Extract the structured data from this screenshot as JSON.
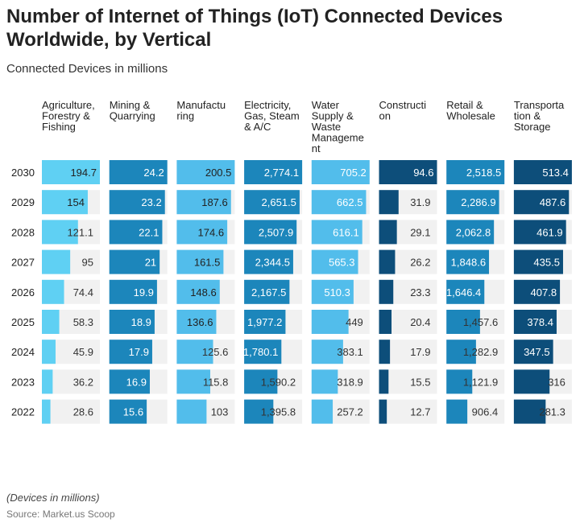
{
  "title": "Number of Internet of Things (IoT) Connected Devices Worldwide, by Vertical",
  "subtitle": "Connected Devices in millions",
  "note": "(Devices in millions)",
  "source": "Source: Market.us Scoop",
  "colors": {
    "track": "#f1f1f1",
    "light_cyan": "#5fd0f3",
    "mid_blue": "#1c86bb",
    "light_blue": "#52bdeb",
    "dark_blue": "#0d4e7a"
  },
  "chart_data": {
    "type": "table",
    "categories": [
      "2030",
      "2029",
      "2028",
      "2027",
      "2026",
      "2025",
      "2024",
      "2023",
      "2022"
    ],
    "series": [
      {
        "name": "Agriculture, Forestry & Fishing",
        "header_lines": [
          "Agriculture,",
          "Forestry &",
          "Fishing"
        ],
        "color": "#5fd0f3",
        "text_color": "#222222",
        "values": [
          194.7,
          154,
          121.1,
          95,
          74.4,
          58.3,
          45.9,
          36.2,
          28.6
        ],
        "labels": [
          "194.7",
          "154",
          "121.1",
          "95",
          "74.4",
          "58.3",
          "45.9",
          "36.2",
          "28.6"
        ]
      },
      {
        "name": "Mining & Quarrying",
        "header_lines": [
          "Mining &",
          "Quarrying"
        ],
        "color": "#1c86bb",
        "text_color": "#ffffff",
        "values": [
          24.2,
          23.2,
          22.1,
          21,
          19.9,
          18.9,
          17.9,
          16.9,
          15.6
        ],
        "labels": [
          "24.2",
          "23.2",
          "22.1",
          "21",
          "19.9",
          "18.9",
          "17.9",
          "16.9",
          "15.6"
        ]
      },
      {
        "name": "Manufacturing",
        "header_lines": [
          "Manufactu",
          "ring"
        ],
        "color": "#52bdeb",
        "text_color": "#222222",
        "values": [
          200.5,
          187.6,
          174.6,
          161.5,
          148.6,
          136.6,
          125.6,
          115.8,
          103
        ],
        "labels": [
          "200.5",
          "187.6",
          "174.6",
          "161.5",
          "148.6",
          "136.6",
          "125.6",
          "115.8",
          "103"
        ]
      },
      {
        "name": "Electricity, Gas, Steam & A/C",
        "header_lines": [
          "Electricity,",
          "Gas, Steam",
          "& A/C"
        ],
        "color": "#1c86bb",
        "text_color": "#ffffff",
        "values": [
          2774.1,
          2651.5,
          2507.9,
          2344.5,
          2167.5,
          1977.2,
          1780.1,
          1590.2,
          1395.8
        ],
        "labels": [
          "2,774.1",
          "2,651.5",
          "2,507.9",
          "2,344.5",
          "2,167.5",
          "1,977.2",
          "1,780.1",
          "1,590.2",
          "1,395.8"
        ]
      },
      {
        "name": "Water Supply & Waste Management",
        "header_lines": [
          "Water",
          "Supply &",
          "Waste",
          "Manageme",
          "nt"
        ],
        "color": "#52bdeb",
        "text_color": "#ffffff",
        "values": [
          705.2,
          662.5,
          616.1,
          565.3,
          510.3,
          449,
          383.1,
          318.9,
          257.2
        ],
        "labels": [
          "705.2",
          "662.5",
          "616.1",
          "565.3",
          "510.3",
          "449",
          "383.1",
          "318.9",
          "257.2"
        ]
      },
      {
        "name": "Construction",
        "header_lines": [
          "Constructi",
          "on"
        ],
        "color": "#0d4e7a",
        "text_color": "#ffffff",
        "values": [
          94.6,
          31.9,
          29.1,
          26.2,
          23.3,
          20.4,
          17.9,
          15.5,
          12.7
        ],
        "labels": [
          "94.6",
          "31.9",
          "29.1",
          "26.2",
          "23.3",
          "20.4",
          "17.9",
          "15.5",
          "12.7"
        ]
      },
      {
        "name": "Retail & Wholesale",
        "header_lines": [
          "Retail &",
          "Wholesale"
        ],
        "color": "#1c86bb",
        "text_color": "#ffffff",
        "values": [
          2518.5,
          2286.9,
          2062.8,
          1848.6,
          1646.4,
          1457.6,
          1282.9,
          1121.9,
          906.4
        ],
        "labels": [
          "2,518.5",
          "2,286.9",
          "2,062.8",
          "1,848.6",
          "1,646.4",
          "1,457.6",
          "1,282.9",
          "1,121.9",
          "906.4"
        ]
      },
      {
        "name": "Transportation & Storage",
        "header_lines": [
          "Transporta",
          "tion &",
          "Storage"
        ],
        "color": "#0d4e7a",
        "text_color": "#ffffff",
        "values": [
          513.4,
          487.6,
          461.9,
          435.5,
          407.8,
          378.4,
          347.5,
          316,
          281.3
        ],
        "labels": [
          "513.4",
          "487.6",
          "461.9",
          "435.5",
          "407.8",
          "378.4",
          "347.5",
          "316",
          "281.3"
        ]
      }
    ]
  }
}
